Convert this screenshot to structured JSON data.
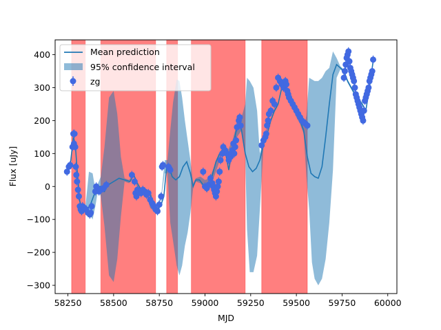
{
  "chart_data": {
    "type": "line",
    "xlabel": "MJD",
    "ylabel": "Flux [uJy]",
    "xlim": [
      58180,
      60050
    ],
    "ylim": [
      -325,
      445
    ],
    "x_ticks": [
      58250,
      58500,
      58750,
      59000,
      59250,
      59500,
      59750,
      60000
    ],
    "x_tick_labels": [
      "58250",
      "58500",
      "58750",
      "59000",
      "59250",
      "59500",
      "59750",
      "60000"
    ],
    "y_ticks": [
      -300,
      -200,
      -100,
      0,
      100,
      200,
      300,
      400
    ],
    "y_tick_labels": [
      "−300",
      "−200",
      "−100",
      "0",
      "100",
      "200",
      "300",
      "400"
    ],
    "legend": {
      "placement": "top-left",
      "entries": [
        "Mean prediction",
        "95% confidence interval",
        "zg"
      ]
    },
    "colors": {
      "mean": "#1f77b4",
      "band": "#1f77b4",
      "points": "#4169e1",
      "shade": "#ff0000"
    },
    "shaded_regions": [
      [
        58270,
        58345
      ],
      [
        58430,
        58730
      ],
      [
        58790,
        58850
      ],
      [
        58925,
        59220
      ],
      [
        59310,
        59560
      ]
    ],
    "mean_prediction": {
      "x": [
        58240,
        58250,
        58265,
        58280,
        58290,
        58300,
        58315,
        58330,
        58345,
        58370,
        58390,
        58410,
        58430,
        58450,
        58470,
        58500,
        58530,
        58560,
        58590,
        58610,
        58630,
        58650,
        58680,
        58700,
        58720,
        58740,
        58760,
        58775,
        58790,
        58805,
        58820,
        58840,
        58860,
        58880,
        58900,
        58920,
        58935,
        58950,
        58970,
        58990,
        59010,
        59030,
        59045,
        59060,
        59080,
        59100,
        59115,
        59130,
        59145,
        59160,
        59175,
        59190,
        59200,
        59220,
        59240,
        59260,
        59280,
        59300,
        59320,
        59340,
        59360,
        59380,
        59400,
        59420,
        59440,
        59460,
        59480,
        59500,
        59520,
        59540,
        59560,
        59580,
        59600,
        59620,
        59640,
        59660,
        59680,
        59700,
        59720,
        59740,
        59760,
        59780,
        59800,
        59820,
        59840,
        59860,
        59880,
        59900,
        59920
      ],
      "y": [
        45,
        55,
        75,
        150,
        130,
        55,
        -45,
        -70,
        -70,
        -60,
        -30,
        0,
        0,
        -15,
        5,
        15,
        25,
        20,
        15,
        35,
        10,
        -10,
        -10,
        -20,
        -60,
        -70,
        -55,
        -30,
        60,
        60,
        30,
        20,
        30,
        60,
        75,
        40,
        0,
        20,
        20,
        5,
        -15,
        10,
        45,
        75,
        100,
        115,
        95,
        50,
        100,
        140,
        180,
        195,
        170,
        100,
        60,
        45,
        55,
        80,
        130,
        160,
        200,
        230,
        250,
        300,
        300,
        280,
        250,
        220,
        200,
        170,
        90,
        40,
        30,
        25,
        60,
        150,
        250,
        340,
        370,
        360,
        350,
        320,
        300,
        280,
        265,
        250,
        230,
        300,
        380
      ]
    },
    "confidence_interval": {
      "x": [
        58240,
        58250,
        58265,
        58280,
        58290,
        58300,
        58315,
        58330,
        58345,
        58365,
        58385,
        58400,
        58415,
        58430,
        58450,
        58475,
        58500,
        58520,
        58540,
        58560,
        58585,
        58610,
        58625,
        58640,
        58660,
        58680,
        58700,
        58720,
        58740,
        58760,
        58780,
        58795,
        58810,
        58825,
        58845,
        58860,
        58875,
        58890,
        58905,
        58920,
        58935,
        58950,
        58975,
        59000,
        59025,
        59050,
        59075,
        59100,
        59125,
        59150,
        59175,
        59200,
        59220,
        59230,
        59245,
        59265,
        59285,
        59300,
        59320,
        59340,
        59360,
        59380,
        59400,
        59420,
        59440,
        59460,
        59480,
        59500,
        59520,
        59540,
        59555,
        59570,
        59585,
        59600,
        59620,
        59640,
        59660,
        59680,
        59700,
        59720,
        59740,
        59760,
        59780,
        59800,
        59820,
        59840,
        59860,
        59880,
        59900,
        59920
      ],
      "lower": [
        40,
        50,
        70,
        145,
        125,
        50,
        -50,
        -75,
        -75,
        -80,
        -100,
        -60,
        -10,
        -30,
        -120,
        -270,
        -290,
        -220,
        -90,
        15,
        10,
        30,
        5,
        -15,
        -15,
        -25,
        -65,
        -75,
        -60,
        -40,
        40,
        40,
        -110,
        -165,
        -240,
        -270,
        -240,
        -180,
        -140,
        -80,
        -5,
        15,
        10,
        -10,
        -5,
        30,
        70,
        110,
        80,
        100,
        150,
        170,
        90,
        -130,
        -260,
        -260,
        -210,
        -70,
        120,
        155,
        195,
        225,
        245,
        295,
        295,
        275,
        245,
        210,
        190,
        160,
        30,
        -70,
        -230,
        -280,
        -300,
        -280,
        -220,
        -110,
        50,
        330,
        355,
        345,
        315,
        295,
        275,
        260,
        245,
        225,
        295,
        375
      ],
      "upper": [
        50,
        60,
        80,
        155,
        135,
        60,
        -40,
        -65,
        -65,
        45,
        40,
        -10,
        10,
        30,
        120,
        270,
        290,
        220,
        90,
        25,
        20,
        40,
        15,
        -5,
        -5,
        -15,
        -55,
        -65,
        -50,
        -30,
        80,
        80,
        170,
        255,
        325,
        320,
        270,
        200,
        140,
        80,
        10,
        25,
        30,
        20,
        25,
        60,
        90,
        120,
        110,
        140,
        190,
        210,
        250,
        330,
        320,
        300,
        230,
        100,
        140,
        165,
        205,
        235,
        255,
        305,
        305,
        285,
        255,
        230,
        210,
        180,
        215,
        330,
        325,
        320,
        320,
        330,
        350,
        360,
        410,
        390,
        365,
        355,
        325,
        305,
        285,
        270,
        255,
        235,
        305,
        385
      ]
    },
    "series": [
      {
        "name": "zg",
        "x": [
          58245,
          58255,
          58262,
          58275,
          58280,
          58283,
          58286,
          58290,
          58293,
          58296,
          58300,
          58305,
          58310,
          58315,
          58320,
          58325,
          58330,
          58340,
          58350,
          58360,
          58370,
          58375,
          58380,
          58400,
          58405,
          58420,
          58430,
          58445,
          58460,
          58600,
          58615,
          58620,
          58625,
          58630,
          58640,
          58650,
          58660,
          58670,
          58680,
          58690,
          58700,
          58710,
          58715,
          58720,
          58730,
          58740,
          58750,
          58760,
          58765,
          58770,
          58800,
          58805,
          58810,
          58990,
          59000,
          59010,
          59020,
          59030,
          59040,
          59045,
          59050,
          59055,
          59060,
          59065,
          59070,
          59075,
          59080,
          59085,
          59095,
          59100,
          59110,
          59120,
          59130,
          59140,
          59145,
          59150,
          59155,
          59160,
          59165,
          59170,
          59175,
          59185,
          59190,
          59195,
          59310,
          59320,
          59330,
          59335,
          59340,
          59345,
          59350,
          59360,
          59370,
          59380,
          59390,
          59400,
          59410,
          59420,
          59430,
          59435,
          59440,
          59445,
          59450,
          59455,
          59460,
          59470,
          59480,
          59490,
          59500,
          59510,
          59520,
          59530,
          59540,
          59550,
          59560,
          59760,
          59765,
          59770,
          59775,
          59780,
          59785,
          59790,
          59795,
          59800,
          59805,
          59810,
          59815,
          59820,
          59825,
          59830,
          59835,
          59840,
          59845,
          59850,
          59855,
          59860,
          59865,
          59870,
          59875,
          59880,
          59885,
          59890,
          59895,
          59900,
          59905,
          59910,
          59915,
          59920
        ],
        "y": [
          45,
          60,
          65,
          120,
          160,
          130,
          160,
          120,
          60,
          35,
          15,
          -10,
          -30,
          -60,
          -70,
          -75,
          -60,
          -65,
          -70,
          -80,
          -85,
          -80,
          -60,
          -15,
          0,
          -15,
          -10,
          -5,
          5,
          35,
          15,
          -20,
          -30,
          -10,
          -15,
          -20,
          -10,
          -15,
          -25,
          -20,
          -40,
          -50,
          -55,
          -60,
          -70,
          -75,
          -55,
          -30,
          60,
          65,
          60,
          55,
          50,
          45,
          0,
          -5,
          5,
          25,
          10,
          0,
          -10,
          -20,
          -30,
          -15,
          0,
          15,
          45,
          80,
          100,
          120,
          110,
          100,
          80,
          90,
          100,
          110,
          130,
          100,
          120,
          140,
          180,
          200,
          210,
          185,
          125,
          140,
          150,
          160,
          185,
          200,
          220,
          230,
          260,
          250,
          300,
          330,
          320,
          310,
          300,
          310,
          320,
          310,
          290,
          280,
          270,
          260,
          250,
          240,
          230,
          220,
          210,
          200,
          195,
          190,
          185,
          330,
          350,
          370,
          390,
          400,
          410,
          380,
          360,
          350,
          340,
          330,
          320,
          300,
          280,
          270,
          260,
          250,
          240,
          230,
          220,
          210,
          200,
          230,
          260,
          270,
          280,
          290,
          300,
          320,
          330,
          340,
          350,
          385
        ]
      }
    ]
  }
}
